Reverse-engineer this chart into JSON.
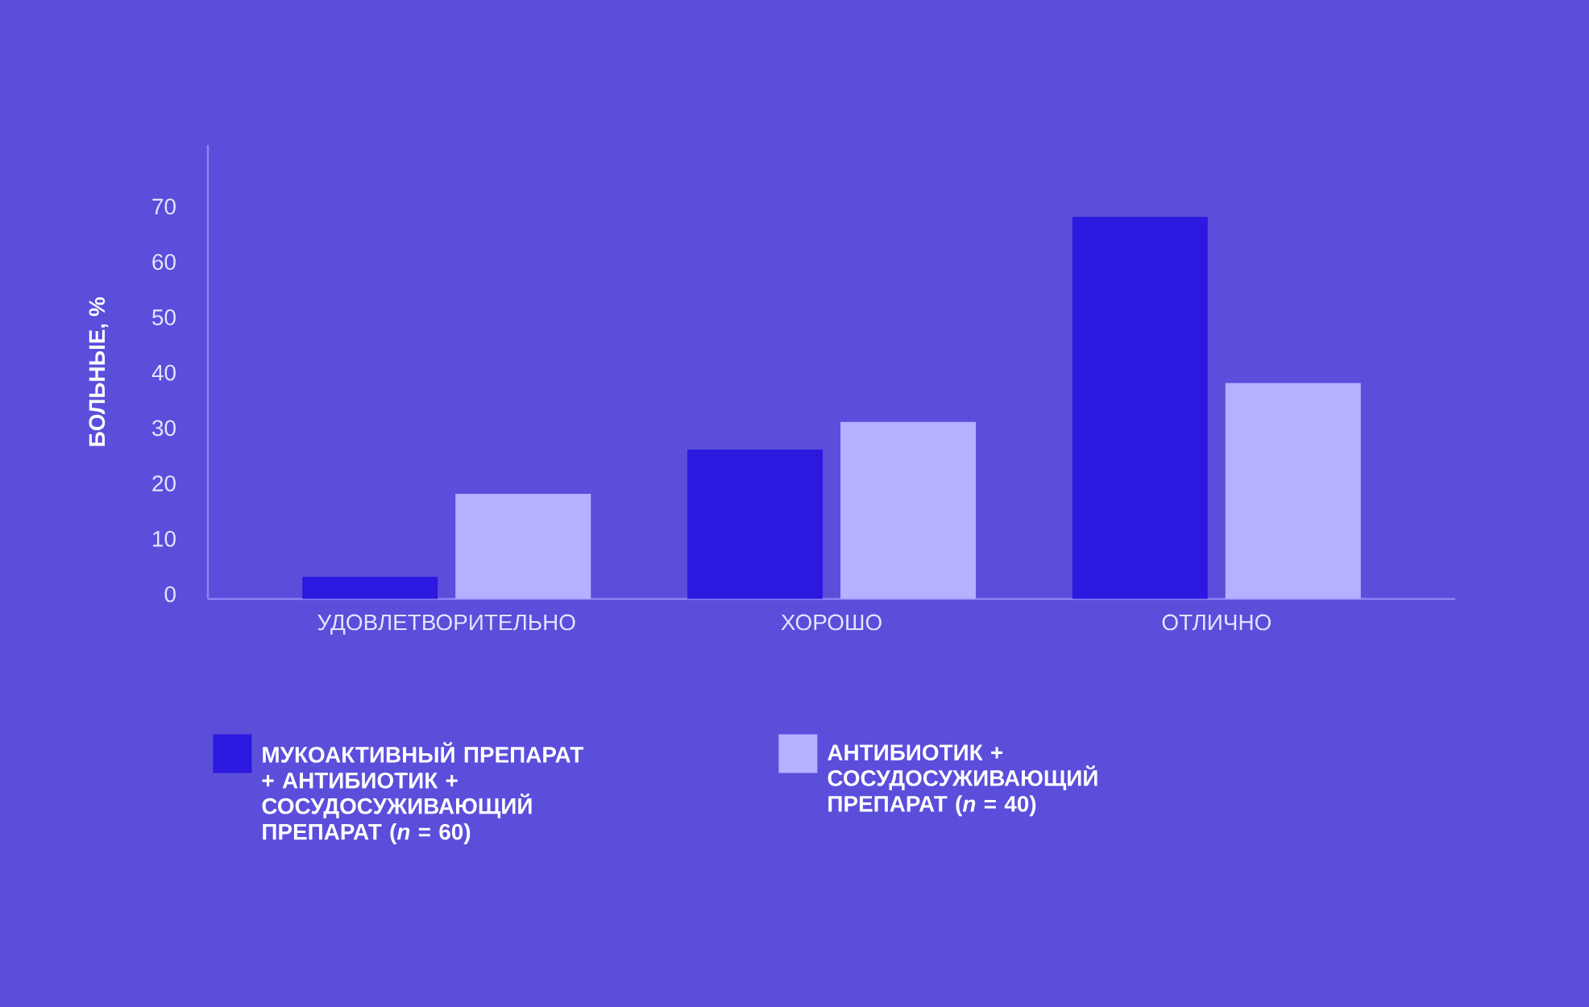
{
  "chart_data": {
    "type": "bar",
    "ylabel": "БОЛЬНЫЕ, %",
    "categories": [
      "УДОВЛЕТВОРИТЕЛЬНО",
      "ХОРОШО",
      "ОТЛИЧНО"
    ],
    "series": [
      {
        "name": "МУКОАКТИВНЫЙ ПРЕПАРАТ + АНТИБИОТИК + СОСУДОСУЖИВАЮЩИЙ ПРЕПАРАТ (*n* = 60)",
        "color": "#2c18df",
        "values": [
          4,
          27,
          69
        ]
      },
      {
        "name": "АНТИБИОТИК + СОСУДОСУЖИВАЮЩИЙ ПРЕПАРАТ (*n* = 40)",
        "color": "#b5b0ff",
        "values": [
          19,
          32,
          39
        ]
      }
    ],
    "ylim": [
      0,
      82
    ],
    "yticks": [
      0,
      10,
      20,
      30,
      40,
      50,
      60,
      70
    ],
    "grid": false,
    "legend": "bottom"
  }
}
